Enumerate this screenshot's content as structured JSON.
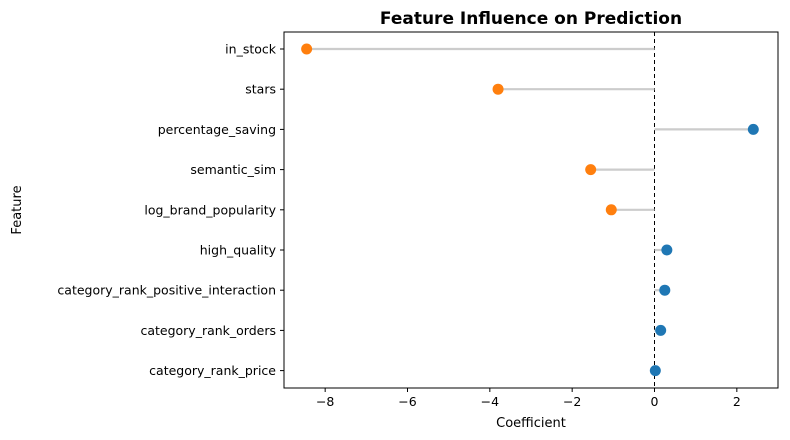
{
  "chart_data": {
    "type": "lollipop",
    "title": "Feature Influence on Prediction",
    "xlabel": "Coefficient",
    "ylabel": "Feature",
    "xlim": [
      -9.0,
      3.0
    ],
    "xticks": [
      -8,
      -6,
      -4,
      -2,
      0,
      2
    ],
    "xtick_labels": [
      "−8",
      "−6",
      "−4",
      "−2",
      "0",
      "2"
    ],
    "grid": false,
    "reference_line": {
      "x": 0,
      "style": "dashed"
    },
    "colors": {
      "positive": "#1f77b4",
      "negative": "#ff7f0e",
      "stem": "#cccccc"
    },
    "categories": [
      "in_stock",
      "stars",
      "percentage_saving",
      "semantic_sim",
      "log_brand_popularity",
      "high_quality",
      "category_rank_positive_interaction",
      "category_rank_orders",
      "category_rank_price"
    ],
    "values": [
      -8.45,
      -3.8,
      2.4,
      -1.55,
      -1.05,
      0.3,
      0.25,
      0.15,
      0.02
    ]
  }
}
